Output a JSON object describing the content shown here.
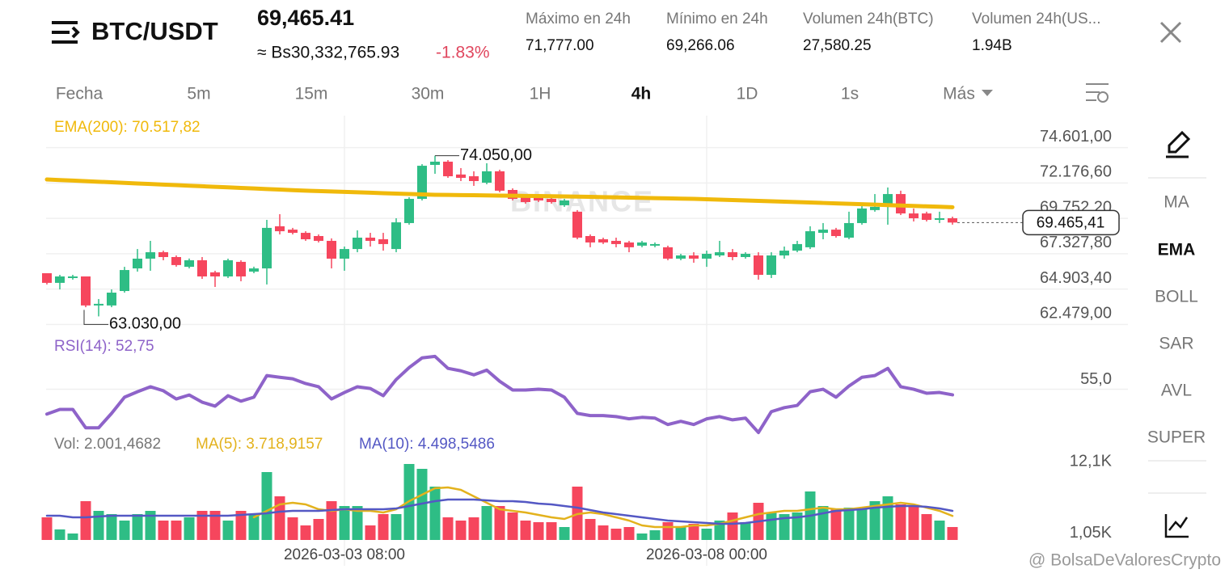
{
  "header": {
    "pair": "BTC/USDT",
    "price": "69,465.41",
    "fiat": "≈ Bs30,332,765.93",
    "change": "-1.83%",
    "stats": [
      {
        "label": "Máximo en 24h",
        "value": "71,777.00"
      },
      {
        "label": "Mínimo en 24h",
        "value": "69,266.06"
      },
      {
        "label": "Volumen 24h(BTC)",
        "value": "27,580.25"
      },
      {
        "label": "Volumen 24h(US...",
        "value": "1.94B"
      }
    ]
  },
  "tabs": [
    "Fecha",
    "5m",
    "15m",
    "30m",
    "1H",
    "4h",
    "1D",
    "1s",
    "Más"
  ],
  "active_tab": 5,
  "indicators": [
    "MA",
    "EMA",
    "BOLL",
    "SAR",
    "AVL",
    "SUPER"
  ],
  "active_indicator": 1,
  "watermark": "BINANCE",
  "credit": "@ BolsaDeValoresCrypto",
  "chart_data": [
    {
      "type": "candlestick",
      "up_color": "#2ebd85",
      "down_color": "#f6465d",
      "grid": true,
      "categories": [
        null,
        null,
        null,
        null,
        null,
        null,
        null,
        null,
        null,
        null,
        null,
        null,
        null,
        null,
        null,
        null,
        null,
        null,
        null,
        null,
        null,
        null,
        null,
        "2026-03-03 08:00",
        null,
        null,
        null,
        null,
        null,
        null,
        null,
        null,
        null,
        null,
        null,
        null,
        null,
        null,
        null,
        null,
        null,
        null,
        null,
        null,
        null,
        null,
        null,
        null,
        null,
        null,
        null,
        "2026-03-08 00:00",
        null,
        null,
        null,
        null,
        null,
        null,
        null,
        null,
        null,
        null,
        null,
        null,
        null,
        null,
        null,
        null,
        null,
        null,
        null
      ],
      "open": [
        65990,
        65330,
        65660,
        65770,
        63780,
        63780,
        64770,
        66320,
        66990,
        67430,
        67100,
        66430,
        66880,
        66050,
        65770,
        66770,
        66100,
        66320,
        69210,
        68980,
        68760,
        68540,
        68210,
        66990,
        67650,
        68430,
        68320,
        67650,
        69430,
        71090,
        73420,
        73640,
        72760,
        72640,
        72200,
        72980,
        71700,
        71310,
        71310,
        71090,
        70650,
        70210,
        68540,
        68320,
        68210,
        68100,
        67880,
        67880,
        67770,
        66990,
        67210,
        66990,
        67210,
        67430,
        67100,
        67210,
        65880,
        67210,
        67540,
        67770,
        68760,
        68980,
        68430,
        69430,
        70320,
        70540,
        71420,
        70090,
        70090,
        69650,
        69760
      ],
      "high": [
        65990,
        65880,
        65880,
        65770,
        64220,
        64880,
        66430,
        67650,
        68210,
        67540,
        67210,
        67000,
        67100,
        66160,
        66990,
        66880,
        66440,
        69650,
        70040,
        69100,
        68870,
        68650,
        68380,
        67820,
        68930,
        68760,
        68760,
        69760,
        71200,
        73470,
        74050,
        73750,
        73200,
        72980,
        73530,
        73090,
        71810,
        71420,
        71420,
        71200,
        71090,
        70320,
        68650,
        68430,
        68430,
        68210,
        68210,
        68100,
        67880,
        67320,
        67430,
        67540,
        68210,
        67650,
        67430,
        67430,
        67430,
        67820,
        68210,
        69210,
        69430,
        69100,
        70210,
        70650,
        71420,
        71870,
        71650,
        70430,
        70210,
        70210,
        69870
      ],
      "low": [
        65220,
        64880,
        65550,
        63660,
        63030,
        63660,
        64660,
        66100,
        66160,
        66880,
        66440,
        66320,
        65600,
        65050,
        65660,
        65440,
        65990,
        65220,
        68650,
        68650,
        68210,
        68100,
        66320,
        66160,
        67430,
        67820,
        67540,
        67430,
        69320,
        70980,
        72810,
        72530,
        72310,
        71980,
        72090,
        71540,
        70980,
        70760,
        70870,
        70760,
        70540,
        68320,
        67770,
        67990,
        67770,
        67430,
        67770,
        67770,
        66880,
        66880,
        66710,
        66430,
        67100,
        66880,
        66990,
        65550,
        65660,
        66990,
        67430,
        67650,
        68320,
        68430,
        68320,
        69320,
        70210,
        69320,
        69980,
        69540,
        69540,
        69430,
        69320
      ],
      "close": [
        65330,
        65770,
        65770,
        63780,
        63890,
        64660,
        66210,
        66990,
        67430,
        67100,
        66550,
        66880,
        65770,
        65770,
        66880,
        65770,
        66320,
        69100,
        68870,
        68760,
        68320,
        68210,
        66990,
        67650,
        68430,
        68210,
        67990,
        69480,
        71090,
        73360,
        73640,
        72640,
        72530,
        72310,
        72980,
        71650,
        71090,
        70870,
        70980,
        70870,
        70980,
        68430,
        68100,
        68100,
        67990,
        67770,
        68100,
        67990,
        66990,
        67210,
        66990,
        67320,
        67430,
        67100,
        67320,
        65880,
        67210,
        67540,
        67990,
        68870,
        68980,
        68540,
        69430,
        70430,
        70540,
        71420,
        70090,
        69760,
        69650,
        69760,
        69465.41
      ],
      "series": [
        {
          "name": "EMA(200): 70.517,82",
          "color": "#f0b90b",
          "values": [
            72420,
            72381,
            72342,
            72303,
            72264,
            72225,
            72186,
            72147,
            72108,
            72069,
            72030,
            71992,
            71954,
            71916,
            71878,
            71840,
            71802,
            71764,
            71726,
            71688,
            71650,
            71622,
            71594,
            71566,
            71538,
            71510,
            71482,
            71454,
            71426,
            71398,
            71370,
            71359,
            71348,
            71337,
            71326,
            71315,
            71304,
            71293,
            71282,
            71271,
            71260,
            71243,
            71226,
            71209,
            71192,
            71175,
            71158,
            71141,
            71124,
            71107,
            71090,
            71062,
            71034,
            71006,
            70978,
            70950,
            70922,
            70894,
            70866,
            70838,
            70810,
            70781,
            70752,
            70723,
            70694,
            70664,
            70635,
            70606,
            70577,
            70548,
            70517.82
          ]
        }
      ],
      "ylim": [
        62000,
        76800
      ],
      "yticks": [
        {
          "value": 74601,
          "label": "74.601,00"
        },
        {
          "value": 72176.6,
          "label": "72.176,60"
        },
        {
          "value": 69752.2,
          "label": "69.752,20"
        },
        {
          "value": 67327.8,
          "label": "67.327,80"
        },
        {
          "value": 64903.4,
          "label": "64.903,40"
        },
        {
          "value": 62479,
          "label": "62.479,00"
        }
      ],
      "annotations": [
        {
          "value": 74050,
          "label": "74.050,00"
        },
        {
          "value": 63030,
          "label": "63.030,00"
        }
      ],
      "last_price": {
        "value": 69465.41,
        "label": "69.465,41"
      }
    },
    {
      "type": "line",
      "grid": true,
      "series": [
        {
          "name": "RSI(14): 52,75",
          "color": "#8e63c9",
          "values": [
            45.0,
            46.9,
            46.9,
            39.5,
            39.5,
            45.3,
            51.8,
            54.0,
            56.0,
            54.4,
            51.1,
            52.7,
            49.8,
            48.2,
            52.4,
            50.2,
            51.8,
            60.5,
            59.8,
            59.2,
            57.3,
            56.0,
            51.1,
            53.7,
            56.0,
            55.3,
            52.4,
            58.9,
            63.7,
            67.6,
            68.2,
            63.4,
            62.4,
            60.8,
            62.7,
            58.2,
            54.7,
            54.7,
            55.0,
            54.7,
            51.8,
            45.3,
            44.4,
            44.4,
            44.0,
            43.1,
            43.7,
            43.4,
            40.8,
            42.1,
            40.8,
            43.1,
            44.0,
            42.7,
            43.4,
            37.6,
            46.0,
            47.6,
            48.5,
            54.0,
            55.0,
            51.8,
            56.3,
            59.8,
            60.5,
            63.4,
            56.0,
            55.0,
            53.4,
            53.7,
            52.75
          ]
        }
      ],
      "ylim": [
        36,
        75
      ],
      "yticks": [
        {
          "value": 55,
          "label": "55,0"
        }
      ]
    },
    {
      "type": "bar",
      "grid": false,
      "series": [
        {
          "name": "Vol: 2.001,4682",
          "color": "#777777",
          "values": [
            3500,
            1630,
            1000,
            6000,
            4500,
            4000,
            3000,
            4000,
            4500,
            3000,
            3000,
            3500,
            4500,
            4500,
            3000,
            4500,
            4000,
            10500,
            6750,
            3500,
            2250,
            3250,
            6000,
            5250,
            5250,
            2250,
            4000,
            4000,
            11750,
            11000,
            8250,
            3500,
            3000,
            3500,
            5250,
            5250,
            4250,
            3000,
            2750,
            2750,
            2000,
            8250,
            3250,
            2250,
            1750,
            2000,
            1000,
            1500,
            2750,
            2000,
            2500,
            1750,
            3000,
            4250,
            2750,
            5750,
            4250,
            4000,
            4250,
            7500,
            5250,
            4750,
            5000,
            4750,
            6000,
            6750,
            5500,
            5250,
            4000,
            3000,
            2001.4682
          ]
        },
        {
          "name": "MA(5): 3.718,9157",
          "color": "#e3b21d",
          "values": [
            null,
            null,
            null,
            null,
            null,
            null,
            null,
            null,
            null,
            null,
            null,
            null,
            null,
            null,
            null,
            null,
            3500,
            4500,
            5500,
            5750,
            5500,
            4750,
            4500,
            4750,
            4500,
            4500,
            4250,
            4750,
            6000,
            7000,
            8000,
            8125,
            7750,
            6750,
            5750,
            4750,
            4500,
            4250,
            3875,
            3500,
            3250,
            4000,
            4250,
            4000,
            3500,
            3000,
            2250,
            2000,
            2000,
            2000,
            2250,
            2250,
            2500,
            3000,
            3500,
            4000,
            4250,
            4500,
            4500,
            4750,
            5000,
            4750,
            4750,
            5000,
            5250,
            5500,
            5750,
            5500,
            5000,
            4500,
            3718.9157
          ]
        },
        {
          "name": "MA(10): 4.498,5486",
          "color": "#5458c4",
          "values": [
            3750,
            3750,
            3500,
            3500,
            3625,
            3750,
            3750,
            3750,
            3750,
            3750,
            3750,
            3750,
            3750,
            3750,
            3750,
            3875,
            4000,
            4125,
            4375,
            4500,
            4500,
            4500,
            4625,
            4750,
            4750,
            4750,
            4750,
            4875,
            5250,
            5625,
            6000,
            6250,
            6250,
            6250,
            6125,
            6000,
            6000,
            5875,
            5625,
            5500,
            5250,
            5000,
            4625,
            4250,
            4000,
            3750,
            3500,
            3250,
            3000,
            2875,
            2750,
            2625,
            2500,
            2500,
            2625,
            2875,
            3125,
            3375,
            3500,
            3750,
            4125,
            4500,
            4625,
            4750,
            5000,
            5125,
            5250,
            5250,
            5125,
            4875,
            4498.5486
          ]
        }
      ],
      "ylim": [
        0,
        13000
      ],
      "yticks": [
        {
          "value": 12100,
          "label": "12,1K"
        },
        {
          "value": 1050,
          "label": "1,05K"
        }
      ]
    }
  ]
}
